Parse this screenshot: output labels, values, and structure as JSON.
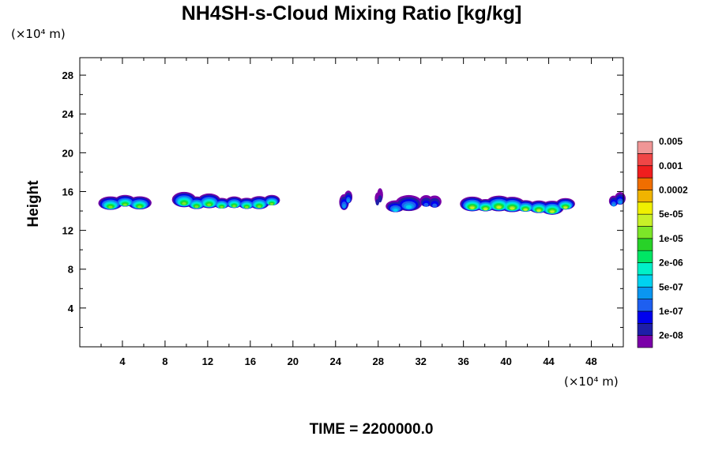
{
  "chart_data": {
    "type": "heatmap",
    "title": "NH4SH-s-Cloud Mixing Ratio [kg/kg]",
    "ylabel": "Height",
    "x_unit_label": "(×10⁴ m)",
    "y_unit_label": "(×10⁴ m)",
    "xlim": [
      0,
      51
    ],
    "ylim": [
      0,
      29.8
    ],
    "x_ticks": [
      "4",
      "8",
      "12",
      "16",
      "20",
      "24",
      "28",
      "32",
      "36",
      "40",
      "44",
      "48"
    ],
    "y_ticks": [
      "4",
      "8",
      "12",
      "16",
      "20",
      "24",
      "28"
    ],
    "colorbar": {
      "colors": [
        "#7a00a8",
        "#1e1ea8",
        "#0000ee",
        "#1e5ff0",
        "#0a96f0",
        "#00d2f0",
        "#00f0c8",
        "#00e664",
        "#28d228",
        "#7de628",
        "#c8f028",
        "#f0f000",
        "#f0b400",
        "#f06e00",
        "#f01e1e",
        "#f04646",
        "#f09696"
      ],
      "labels": [
        "2e-08",
        "1e-07",
        "5e-07",
        "2e-06",
        "1e-05",
        "5e-05",
        "0.0002",
        "0.001",
        "0.005"
      ]
    },
    "cloud_patches": [
      {
        "x0": 2.2,
        "x1": 6.3,
        "y_center": 14.8,
        "peak_level": 9
      },
      {
        "x0": 9.2,
        "x1": 18.6,
        "y_center": 14.9,
        "peak_level": 9
      },
      {
        "x0": 24.6,
        "x1": 25.4,
        "y_center": 15.2,
        "peak_level": 4
      },
      {
        "x0": 27.8,
        "x1": 28.3,
        "y_center": 15.6,
        "peak_level": 1
      },
      {
        "x0": 29.0,
        "x1": 31.5,
        "y_center": 14.6,
        "peak_level": 5
      },
      {
        "x0": 32.1,
        "x1": 33.7,
        "y_center": 15.0,
        "peak_level": 3
      },
      {
        "x0": 36.2,
        "x1": 46.2,
        "y_center": 14.5,
        "peak_level": 10
      },
      {
        "x0": 49.8,
        "x1": 51.0,
        "y_center": 15.0,
        "peak_level": 4
      }
    ],
    "time_label": "TIME = 2200000.0"
  }
}
